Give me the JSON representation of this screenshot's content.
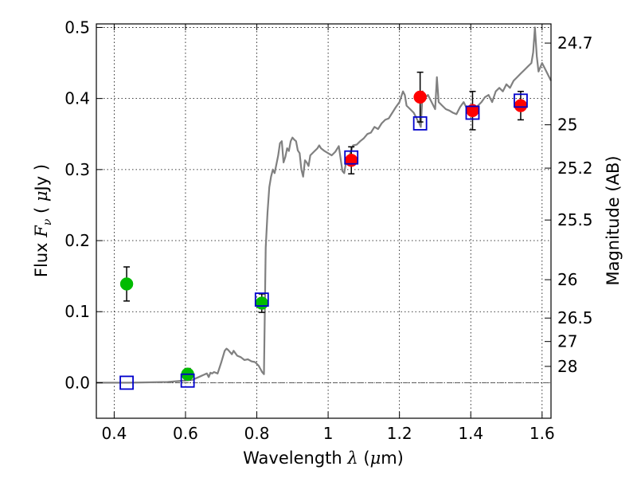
{
  "chart_data": {
    "type": "scatter",
    "title": "",
    "xlabel": "Wavelength  λ (μm)",
    "ylabel": "Flux  Fν  ( μJy )",
    "ylabel_right": "Magnitude (AB)",
    "xlim": [
      0.35,
      1.625
    ],
    "ylim": [
      -0.05,
      0.505
    ],
    "grid": true,
    "x_ticks": [
      0.4,
      0.6,
      0.8,
      1.0,
      1.2,
      1.4,
      1.6
    ],
    "x_tick_labels": [
      "0.4",
      "0.6",
      "0.8",
      "1",
      "1.2",
      "1.4",
      "1.6"
    ],
    "y_ticks": [
      0.0,
      0.1,
      0.2,
      0.3,
      0.4,
      0.5
    ],
    "y_tick_labels": [
      "0.0",
      "0.1",
      "0.2",
      "0.3",
      "0.4",
      "0.5"
    ],
    "magnitude_ticks": [
      {
        "label": "24.7",
        "flux": 0.478
      },
      {
        "label": "25",
        "flux": 0.363
      },
      {
        "label": "25.2",
        "flux": 0.302
      },
      {
        "label": "25.5",
        "flux": 0.229
      },
      {
        "label": "26",
        "flux": 0.145
      },
      {
        "label": "26.5",
        "flux": 0.091
      },
      {
        "label": "27",
        "flux": 0.058
      },
      {
        "label": "28",
        "flux": 0.023
      }
    ],
    "colors": {
      "model": "#808080",
      "model_photometry": "#0000cc",
      "green_points": "#00bb00",
      "red_points": "#ff0000",
      "zero_line": "#555555"
    },
    "series": [
      {
        "kind": "model_spectrum",
        "x": [
          0.35,
          0.44,
          0.55,
          0.62,
          0.655,
          0.66,
          0.665,
          0.67,
          0.675,
          0.68,
          0.69,
          0.7,
          0.71,
          0.715,
          0.72,
          0.73,
          0.735,
          0.745,
          0.755,
          0.765,
          0.775,
          0.785,
          0.795,
          0.805,
          0.815,
          0.82,
          0.825,
          0.83,
          0.835,
          0.84,
          0.845,
          0.85,
          0.86,
          0.865,
          0.87,
          0.875,
          0.88,
          0.885,
          0.89,
          0.895,
          0.9,
          0.905,
          0.91,
          0.915,
          0.92,
          0.925,
          0.93,
          0.935,
          0.94,
          0.945,
          0.95,
          0.96,
          0.97,
          0.975,
          0.98,
          0.99,
          1.0,
          1.01,
          1.02,
          1.03,
          1.04,
          1.045,
          1.05,
          1.06,
          1.07,
          1.08,
          1.09,
          1.1,
          1.11,
          1.12,
          1.13,
          1.14,
          1.15,
          1.16,
          1.17,
          1.18,
          1.19,
          1.2,
          1.21,
          1.215,
          1.22,
          1.23,
          1.24,
          1.25,
          1.255,
          1.26,
          1.265,
          1.27,
          1.28,
          1.29,
          1.3,
          1.305,
          1.31,
          1.32,
          1.33,
          1.34,
          1.35,
          1.36,
          1.37,
          1.38,
          1.39,
          1.4,
          1.41,
          1.42,
          1.43,
          1.44,
          1.45,
          1.46,
          1.47,
          1.48,
          1.49,
          1.5,
          1.51,
          1.52,
          1.53,
          1.54,
          1.55,
          1.56,
          1.57,
          1.575,
          1.58,
          1.585,
          1.59,
          1.6,
          1.61,
          1.625
        ],
        "values": [
          0.0,
          0.0,
          0.001,
          0.004,
          0.012,
          0.013,
          0.008,
          0.014,
          0.013,
          0.015,
          0.013,
          0.028,
          0.045,
          0.048,
          0.046,
          0.04,
          0.045,
          0.038,
          0.036,
          0.032,
          0.033,
          0.03,
          0.029,
          0.024,
          0.015,
          0.012,
          0.19,
          0.24,
          0.275,
          0.29,
          0.3,
          0.295,
          0.32,
          0.337,
          0.34,
          0.31,
          0.318,
          0.33,
          0.326,
          0.34,
          0.345,
          0.342,
          0.34,
          0.327,
          0.323,
          0.3,
          0.29,
          0.313,
          0.31,
          0.305,
          0.32,
          0.325,
          0.33,
          0.334,
          0.33,
          0.326,
          0.323,
          0.32,
          0.325,
          0.333,
          0.298,
          0.295,
          0.31,
          0.32,
          0.334,
          0.335,
          0.34,
          0.344,
          0.35,
          0.352,
          0.36,
          0.357,
          0.365,
          0.37,
          0.372,
          0.38,
          0.388,
          0.395,
          0.41,
          0.405,
          0.39,
          0.385,
          0.38,
          0.37,
          0.366,
          0.36,
          0.41,
          0.4,
          0.405,
          0.395,
          0.385,
          0.43,
          0.395,
          0.39,
          0.385,
          0.383,
          0.38,
          0.378,
          0.388,
          0.395,
          0.385,
          0.38,
          0.385,
          0.39,
          0.395,
          0.402,
          0.405,
          0.395,
          0.41,
          0.415,
          0.41,
          0.42,
          0.415,
          0.425,
          0.43,
          0.435,
          0.44,
          0.445,
          0.45,
          0.465,
          0.5,
          0.46,
          0.438,
          0.45,
          0.44,
          0.425
        ]
      },
      {
        "kind": "model_photometry",
        "marker": "open-square",
        "x": [
          0.435,
          0.606,
          0.814,
          1.065,
          1.258,
          1.405,
          1.54
        ],
        "values": [
          0.0,
          0.003,
          0.117,
          0.317,
          0.365,
          0.38,
          0.397
        ]
      },
      {
        "kind": "observed_green",
        "marker": "filled-circle",
        "x": [
          0.435,
          0.606,
          0.814
        ],
        "values": [
          0.139,
          0.012,
          0.112
        ],
        "error": [
          0.024,
          0.008,
          0.013
        ]
      },
      {
        "kind": "observed_red",
        "marker": "filled-circle",
        "x": [
          1.065,
          1.258,
          1.405,
          1.54
        ],
        "values": [
          0.313,
          0.402,
          0.383,
          0.39
        ],
        "error": [
          0.019,
          0.035,
          0.027,
          0.02
        ]
      }
    ]
  }
}
